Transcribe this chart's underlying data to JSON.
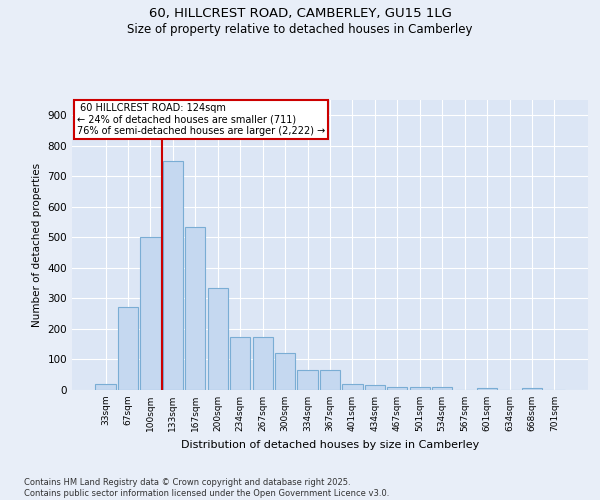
{
  "title_line1": "60, HILLCREST ROAD, CAMBERLEY, GU15 1LG",
  "title_line2": "Size of property relative to detached houses in Camberley",
  "xlabel": "Distribution of detached houses by size in Camberley",
  "ylabel": "Number of detached properties",
  "categories": [
    "33sqm",
    "67sqm",
    "100sqm",
    "133sqm",
    "167sqm",
    "200sqm",
    "234sqm",
    "267sqm",
    "300sqm",
    "334sqm",
    "367sqm",
    "401sqm",
    "434sqm",
    "467sqm",
    "501sqm",
    "534sqm",
    "567sqm",
    "601sqm",
    "634sqm",
    "668sqm",
    "701sqm"
  ],
  "values": [
    20,
    272,
    500,
    750,
    535,
    335,
    175,
    175,
    120,
    65,
    65,
    20,
    17,
    10,
    10,
    10,
    0,
    8,
    0,
    5,
    0
  ],
  "bar_color": "#c5d8f0",
  "bar_edge_color": "#7aadd4",
  "vline_x": 2.5,
  "vline_color": "#cc0000",
  "annotation_box_edgecolor": "#cc0000",
  "marker_label": "60 HILLCREST ROAD: 124sqm",
  "pct_smaller": "24% of detached houses are smaller (711)",
  "pct_larger": "76% of semi-detached houses are larger (2,222)",
  "ylim": [
    0,
    950
  ],
  "yticks": [
    0,
    100,
    200,
    300,
    400,
    500,
    600,
    700,
    800,
    900
  ],
  "footer_line1": "Contains HM Land Registry data © Crown copyright and database right 2025.",
  "footer_line2": "Contains public sector information licensed under the Open Government Licence v3.0.",
  "bg_color": "#e8eef8",
  "plot_bg_color": "#dce6f5"
}
